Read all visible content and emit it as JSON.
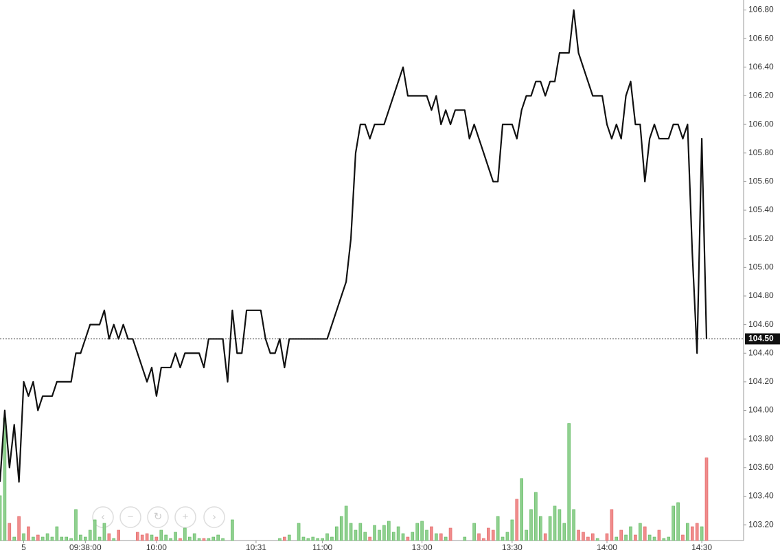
{
  "chart_data": {
    "type": "line",
    "categories": [
      null,
      null,
      null,
      null,
      null,
      "5",
      null,
      null,
      null,
      null,
      null,
      null,
      null,
      null,
      null,
      null,
      null,
      null,
      "09:38:00",
      null,
      null,
      null,
      null,
      null,
      null,
      null,
      null,
      null,
      null,
      null,
      null,
      null,
      null,
      "10:00",
      null,
      null,
      null,
      null,
      null,
      null,
      null,
      null,
      null,
      null,
      null,
      null,
      null,
      null,
      null,
      null,
      null,
      null,
      null,
      null,
      "10:31",
      null,
      null,
      null,
      null,
      null,
      null,
      null,
      null,
      null,
      null,
      null,
      null,
      null,
      "11:00",
      null,
      null,
      null,
      null,
      null,
      null,
      null,
      null,
      null,
      null,
      null,
      null,
      null,
      null,
      null,
      null,
      null,
      null,
      null,
      null,
      "13:00",
      null,
      null,
      null,
      null,
      null,
      null,
      null,
      null,
      null,
      null,
      null,
      null,
      null,
      null,
      null,
      null,
      null,
      null,
      "13:30",
      null,
      null,
      null,
      null,
      null,
      null,
      null,
      null,
      null,
      null,
      null,
      null,
      null,
      null,
      null,
      null,
      null,
      null,
      null,
      "14:00",
      null,
      null,
      null,
      null,
      null,
      null,
      null,
      null,
      null,
      null,
      null,
      null,
      null,
      null,
      null,
      null,
      null,
      null,
      null,
      "14:30",
      null
    ],
    "series": [
      {
        "color": "#111111",
        "values": [
          103.5,
          104.0,
          103.6,
          103.9,
          103.5,
          104.2,
          104.1,
          104.2,
          104.0,
          104.1,
          104.1,
          104.1,
          104.2,
          104.2,
          104.2,
          104.2,
          104.4,
          104.4,
          104.5,
          104.6,
          104.6,
          104.6,
          104.7,
          104.5,
          104.6,
          104.5,
          104.6,
          104.5,
          104.5,
          104.4,
          104.3,
          104.2,
          104.3,
          104.1,
          104.3,
          104.3,
          104.3,
          104.4,
          104.3,
          104.4,
          104.4,
          104.4,
          104.4,
          104.3,
          104.5,
          104.5,
          104.5,
          104.5,
          104.2,
          104.7,
          104.4,
          104.4,
          104.7,
          104.7,
          104.7,
          104.7,
          104.5,
          104.4,
          104.4,
          104.5,
          104.3,
          104.5,
          104.5,
          104.5,
          104.5,
          104.5,
          104.5,
          104.5,
          104.5,
          104.5,
          104.6,
          104.7,
          104.8,
          104.9,
          105.2,
          105.8,
          106.0,
          106.0,
          105.9,
          106.0,
          106.0,
          106.0,
          106.1,
          106.2,
          106.3,
          106.4,
          106.2,
          106.2,
          106.2,
          106.2,
          106.2,
          106.1,
          106.2,
          106.0,
          106.1,
          106.0,
          106.1,
          106.1,
          106.1,
          105.9,
          106.0,
          105.9,
          105.8,
          105.7,
          105.6,
          105.6,
          106.0,
          106.0,
          106.0,
          105.9,
          106.1,
          106.2,
          106.2,
          106.3,
          106.3,
          106.2,
          106.3,
          106.3,
          106.5,
          106.5,
          106.5,
          106.8,
          106.5,
          106.4,
          106.3,
          106.2,
          106.2,
          106.2,
          106.0,
          105.9,
          106.0,
          105.9,
          106.2,
          106.3,
          106.0,
          106.0,
          105.6,
          105.9,
          106.0,
          105.9,
          105.9,
          105.9,
          106.0,
          106.0,
          105.9,
          106.0,
          105.1,
          104.4,
          105.9,
          104.5
        ]
      },
      {
        "axis": "y2",
        "up_color": "#8fd08f",
        "down_color": "#f08c8c",
        "values": [
          65,
          178,
          25,
          5,
          35,
          10,
          20,
          5,
          8,
          5,
          10,
          5,
          20,
          5,
          5,
          3,
          45,
          8,
          5,
          15,
          30,
          5,
          25,
          10,
          3,
          15,
          0,
          0,
          0,
          12,
          8,
          10,
          8,
          5,
          15,
          8,
          3,
          12,
          3,
          18,
          5,
          10,
          3,
          3,
          3,
          5,
          8,
          3,
          0,
          30,
          0,
          0,
          0,
          0,
          0,
          0,
          0,
          0,
          0,
          3,
          5,
          8,
          0,
          25,
          5,
          3,
          5,
          3,
          3,
          10,
          5,
          20,
          35,
          50,
          25,
          15,
          25,
          12,
          5,
          22,
          15,
          22,
          28,
          12,
          20,
          10,
          5,
          12,
          25,
          28,
          15,
          20,
          10,
          10,
          5,
          18,
          0,
          0,
          5,
          0,
          25,
          10,
          3,
          18,
          15,
          35,
          5,
          12,
          30,
          60,
          90,
          15,
          45,
          70,
          35,
          10,
          35,
          50,
          45,
          25,
          170,
          45,
          15,
          12,
          5,
          10,
          3,
          0,
          10,
          45,
          5,
          15,
          8,
          20,
          8,
          25,
          20,
          8,
          5,
          15,
          3,
          5,
          50,
          55,
          8,
          25,
          20,
          25,
          20,
          120
        ]
      }
    ],
    "ylim": [
      103.09,
      106.87
    ],
    "yticks": [
      {
        "value": 103.2,
        "label": "103.20"
      },
      {
        "value": 103.4,
        "label": "103.40"
      },
      {
        "value": 103.6,
        "label": "103.60"
      },
      {
        "value": 103.8,
        "label": "103.80"
      },
      {
        "value": 104.0,
        "label": "104.00"
      },
      {
        "value": 104.2,
        "label": "104.20"
      },
      {
        "value": 104.4,
        "label": "104.40"
      },
      {
        "value": 104.6,
        "label": "104.60"
      },
      {
        "value": 104.8,
        "label": "104.80"
      },
      {
        "value": 105.0,
        "label": "105.00"
      },
      {
        "value": 105.2,
        "label": "105.20"
      },
      {
        "value": 105.4,
        "label": "105.40"
      },
      {
        "value": 105.6,
        "label": "105.60"
      },
      {
        "value": 105.8,
        "label": "105.80"
      },
      {
        "value": 106.0,
        "label": "106.00"
      },
      {
        "value": 106.2,
        "label": "106.20"
      },
      {
        "value": 106.4,
        "label": "106.40"
      },
      {
        "value": 106.6,
        "label": "106.60"
      },
      {
        "value": 106.8,
        "label": "106.80"
      }
    ],
    "y2lim": [
      0,
      785
    ],
    "last_price": {
      "value": 104.5,
      "label": "104.50"
    }
  }
}
